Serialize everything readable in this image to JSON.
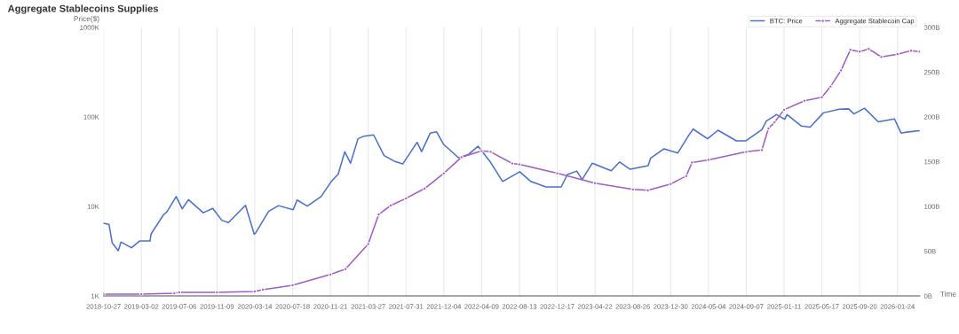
{
  "chart_data": {
    "type": "line",
    "title": "Aggregate Stablecoins Supplies",
    "ylabel": "Price($)",
    "xlabel": "Time",
    "xlim": [
      "2018-10-27",
      "2026-04-08"
    ],
    "xticks": [
      "2018-10-27",
      "2019-03-02",
      "2019-07-06",
      "2019-11-09",
      "2020-03-14",
      "2020-07-18",
      "2020-11-21",
      "2021-03-27",
      "2021-07-31",
      "2021-12-04",
      "2022-04-09",
      "2022-08-13",
      "2022-12-17",
      "2023-04-22",
      "2023-08-26",
      "2023-12-30",
      "2024-05-04",
      "2024-09-07",
      "2025-01-11",
      "2025-05-17",
      "2025-09-20",
      "2026-01-24"
    ],
    "log": "y",
    "ylim": [
      1000,
      1000000
    ],
    "yticks": [
      {
        "value": 1000,
        "label": "1K"
      },
      {
        "value": 10000,
        "label": "10K"
      },
      {
        "value": 100000,
        "label": "100K"
      },
      {
        "value": 1000000,
        "label": "1000K"
      }
    ],
    "y2lim": [
      0,
      300
    ],
    "y2ticks": [
      {
        "value": 0,
        "label": "0B"
      },
      {
        "value": 50,
        "label": "50B"
      },
      {
        "value": 100,
        "label": "100B"
      },
      {
        "value": 150,
        "label": "150B"
      },
      {
        "value": 200,
        "label": "200B"
      },
      {
        "value": 250,
        "label": "250B"
      },
      {
        "value": 300,
        "label": "300B"
      }
    ],
    "grid": "x",
    "legend": "top right",
    "line_style": "solid",
    "series": [
      {
        "name": "BTC: Price",
        "color": "#4a6fcf",
        "marker": "none",
        "x": [
          "2018-10-27",
          "2018-11-14",
          "2018-11-25",
          "2018-12-15",
          "2018-12-24",
          "2019-01-28",
          "2019-02-24",
          "2019-03-31",
          "2019-04-03",
          "2019-05-14",
          "2019-05-26",
          "2019-06-26",
          "2019-07-16",
          "2019-08-06",
          "2019-09-24",
          "2019-10-26",
          "2019-11-25",
          "2019-12-17",
          "2020-02-12",
          "2020-03-12",
          "2020-03-16",
          "2020-04-29",
          "2020-06-01",
          "2020-07-20",
          "2020-08-02",
          "2020-09-05",
          "2020-10-21",
          "2020-11-24",
          "2020-12-17",
          "2021-01-08",
          "2021-01-27",
          "2021-02-21",
          "2021-03-13",
          "2021-04-14",
          "2021-05-19",
          "2021-06-22",
          "2021-07-20",
          "2021-09-06",
          "2021-09-21",
          "2021-10-20",
          "2021-11-10",
          "2021-12-04",
          "2022-01-22",
          "2022-02-24",
          "2022-03-28",
          "2022-05-09",
          "2022-06-18",
          "2022-08-14",
          "2022-09-20",
          "2022-11-09",
          "2022-12-30",
          "2023-01-20",
          "2023-02-20",
          "2023-03-10",
          "2023-04-13",
          "2023-06-15",
          "2023-07-13",
          "2023-08-17",
          "2023-10-16",
          "2023-10-24",
          "2023-12-08",
          "2024-01-23",
          "2024-02-28",
          "2024-03-14",
          "2024-05-01",
          "2024-06-05",
          "2024-08-05",
          "2024-09-06",
          "2024-10-29",
          "2024-11-13",
          "2024-12-17",
          "2025-01-13",
          "2025-01-21",
          "2025-03-10",
          "2025-04-08",
          "2025-05-22",
          "2025-07-14",
          "2025-08-14",
          "2025-09-01",
          "2025-10-06",
          "2025-11-21",
          "2026-01-14",
          "2026-02-05",
          "2026-03-01",
          "2026-04-08"
        ],
        "values": [
          6500,
          6300,
          3900,
          3200,
          4000,
          3450,
          4100,
          4100,
          4900,
          8000,
          8700,
          12900,
          9400,
          11900,
          8500,
          9500,
          7000,
          6600,
          10300,
          4900,
          5000,
          8800,
          10200,
          9200,
          11800,
          10100,
          12900,
          19000,
          23000,
          40800,
          30400,
          57000,
          61000,
          63000,
          37000,
          32000,
          29800,
          52000,
          41000,
          66000,
          68000,
          49000,
          35000,
          38000,
          47000,
          31000,
          19000,
          24400,
          19000,
          16500,
          16500,
          22700,
          24800,
          20000,
          30400,
          25000,
          31400,
          26000,
          28500,
          34500,
          44000,
          39500,
          62000,
          73000,
          57000,
          71000,
          54000,
          54000,
          72000,
          90000,
          106000,
          94000,
          106000,
          79000,
          77000,
          111000,
          122000,
          123000,
          108000,
          125000,
          88000,
          95000,
          66000,
          68000,
          70000
        ]
      },
      {
        "name": "Aggregate Stablecoin Cap",
        "color": "#a05cc8",
        "axis": "y2",
        "marker": "circle",
        "x": [
          "2018-10-27",
          "2019-03-02",
          "2019-06-20",
          "2019-07-06",
          "2019-11-09",
          "2020-03-14",
          "2020-04-10",
          "2020-07-18",
          "2020-11-21",
          "2021-01-10",
          "2021-03-27",
          "2021-05-01",
          "2021-06-10",
          "2021-07-31",
          "2021-10-01",
          "2021-12-04",
          "2022-02-01",
          "2022-04-09",
          "2022-05-09",
          "2022-07-20",
          "2022-08-13",
          "2022-12-17",
          "2023-04-22",
          "2023-08-26",
          "2023-10-15",
          "2023-12-30",
          "2024-02-20",
          "2024-03-10",
          "2024-05-04",
          "2024-09-07",
          "2024-10-29",
          "2024-11-20",
          "2024-12-10",
          "2025-01-11",
          "2025-03-20",
          "2025-05-17",
          "2025-06-15",
          "2025-07-20",
          "2025-08-20",
          "2025-09-20",
          "2025-10-20",
          "2025-12-01",
          "2026-01-24",
          "2026-03-10",
          "2026-04-08"
        ],
        "values": [
          2,
          2,
          3,
          4,
          4,
          5,
          7,
          12,
          24,
          30,
          58,
          91,
          101,
          109,
          120,
          137,
          155,
          162,
          161,
          148,
          147,
          137,
          126,
          119,
          118,
          125,
          134,
          149,
          152,
          161,
          163,
          187,
          194,
          208,
          218,
          222,
          234,
          252,
          275,
          273,
          276,
          267,
          270,
          274,
          273
        ]
      }
    ]
  }
}
